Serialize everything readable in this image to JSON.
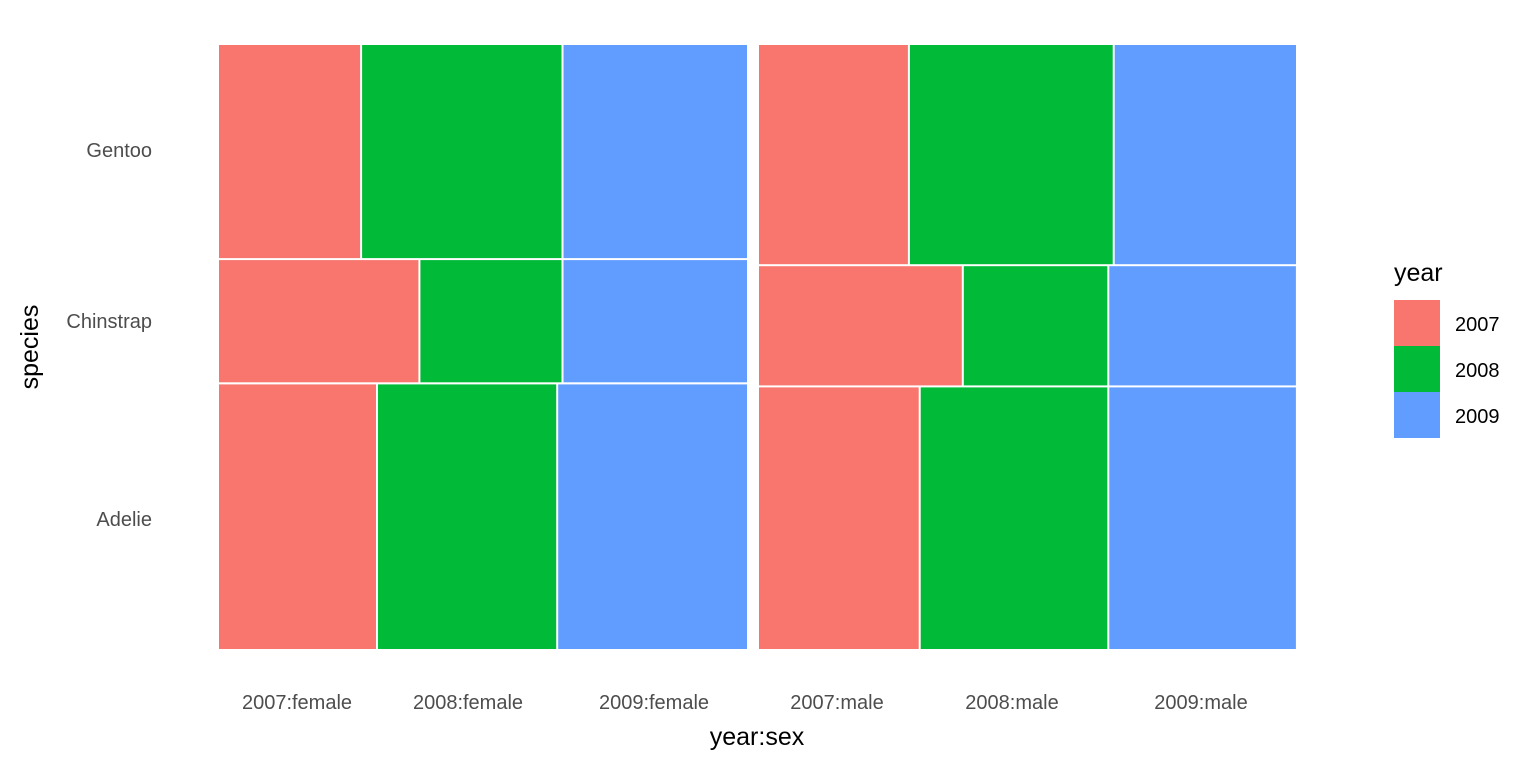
{
  "chart_data": {
    "type": "mosaic",
    "xlabel": "year:sex",
    "ylabel": "species",
    "categories": [
      "2007:female",
      "2008:female",
      "2009:female",
      "2007:male",
      "2008:male",
      "2009:male"
    ],
    "species": [
      "Adelie",
      "Chinstrap",
      "Gentoo"
    ],
    "legend": {
      "title": "year",
      "position": "right",
      "items": [
        {
          "label": "2007",
          "color": "#F8766D"
        },
        {
          "label": "2008",
          "color": "#00BA38"
        },
        {
          "label": "2009",
          "color": "#619CFF"
        }
      ]
    },
    "sex_groups": [
      {
        "sex": "female",
        "species_share": {
          "Adelie": 0.44,
          "Chinstrap": 0.205,
          "Gentoo": 0.355
        },
        "year_shares": {
          "Adelie": [
            0.3,
            0.34,
            0.36
          ],
          "Chinstrap": [
            0.38,
            0.27,
            0.35
          ],
          "Gentoo": [
            0.27,
            0.38,
            0.35
          ]
        }
      },
      {
        "sex": "male",
        "species_share": {
          "Adelie": 0.435,
          "Chinstrap": 0.2,
          "Gentoo": 0.365
        },
        "year_shares": {
          "Adelie": [
            0.3,
            0.35,
            0.35
          ],
          "Chinstrap": [
            0.38,
            0.27,
            0.35
          ],
          "Gentoo": [
            0.28,
            0.38,
            0.34
          ]
        }
      }
    ],
    "grid": false
  }
}
